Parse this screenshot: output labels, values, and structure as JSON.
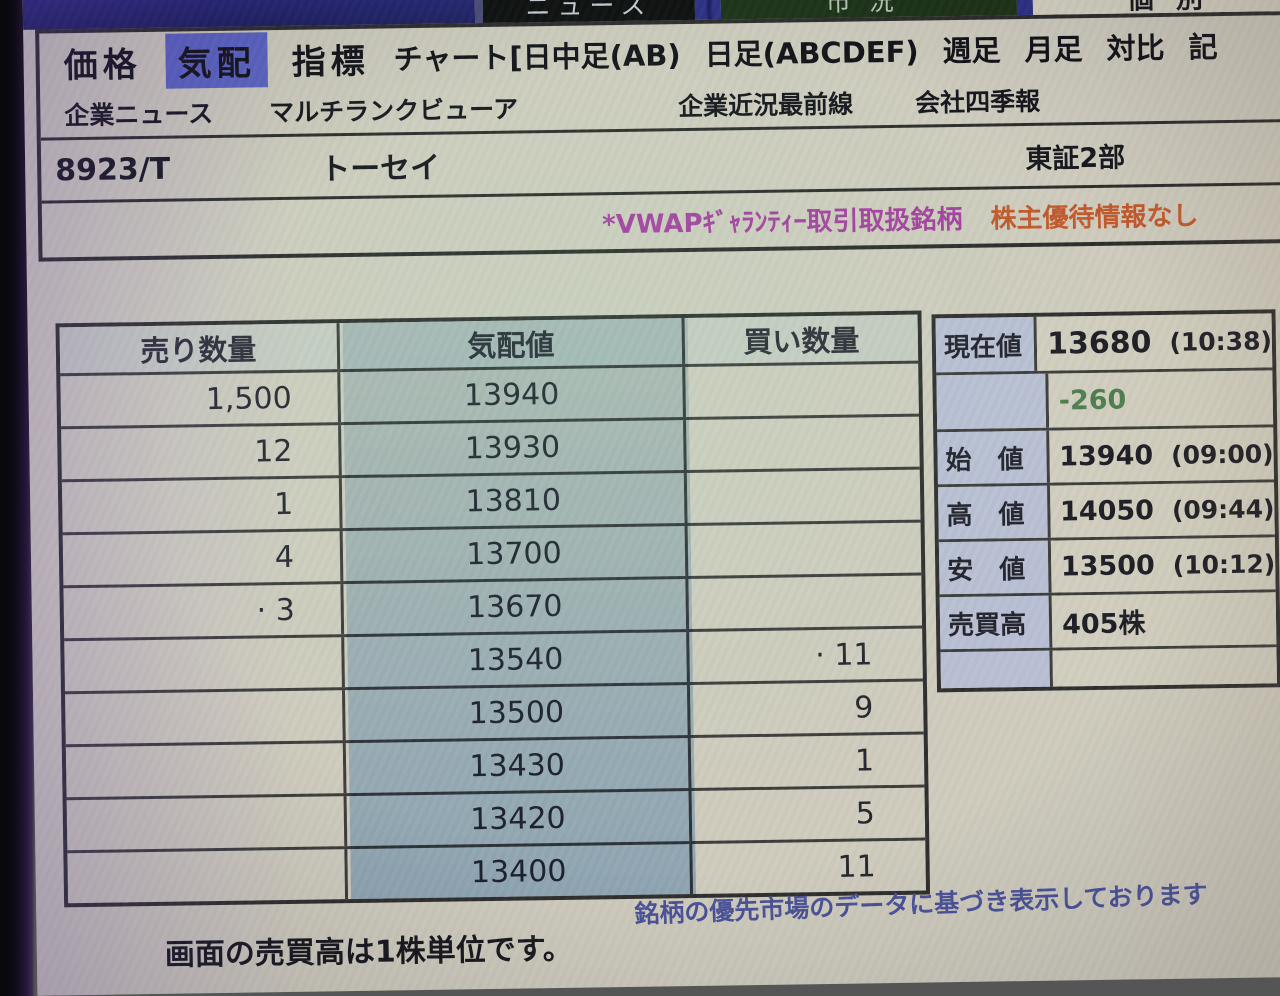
{
  "top_tabs": {
    "news": "ニュース",
    "market": "市況",
    "individual": "個別"
  },
  "menus": {
    "row1": [
      "価格",
      "気配",
      "指標",
      "チャート[日中足(AB)",
      "日足(ABCDEF)",
      "週足",
      "月足",
      "対比",
      "記"
    ],
    "row2": [
      "企業ニュース",
      "マルチランクビューア",
      "企業近況最前線",
      "会社四季報"
    ]
  },
  "stock": {
    "code": "8923/T",
    "name": "トーセイ",
    "exchange": "東証2部"
  },
  "notice": {
    "vwap": "*VWAPｷﾞｬﾗﾝﾃｨｰ取引取扱銘柄",
    "yutai": "株主優待情報なし"
  },
  "orderbook": {
    "headers": {
      "sell": "売り数量",
      "price": "気配値",
      "buy": "買い数量"
    },
    "rows": [
      {
        "sell": "1,500",
        "price": "13940",
        "buy": ""
      },
      {
        "sell": "12",
        "price": "13930",
        "buy": ""
      },
      {
        "sell": "1",
        "price": "13810",
        "buy": ""
      },
      {
        "sell": "4",
        "price": "13700",
        "buy": ""
      },
      {
        "sell": "· 3",
        "price": "13670",
        "buy": ""
      },
      {
        "sell": "",
        "price": "13540",
        "buy": "· 11"
      },
      {
        "sell": "",
        "price": "13500",
        "buy": "9"
      },
      {
        "sell": "",
        "price": "13430",
        "buy": "1"
      },
      {
        "sell": "",
        "price": "13420",
        "buy": "5"
      },
      {
        "sell": "",
        "price": "13400",
        "buy": "11"
      }
    ]
  },
  "quote_panel": {
    "rows": [
      {
        "label": "現在値",
        "value": "13680",
        "time": "(10:38)"
      },
      {
        "label": "",
        "value": "-260",
        "time": ""
      },
      {
        "label": "始　値",
        "value": "13940",
        "time": "(09:00)"
      },
      {
        "label": "高　値",
        "value": "14050",
        "time": "(09:44)"
      },
      {
        "label": "安　値",
        "value": "13500",
        "time": "(10:12)"
      },
      {
        "label": "売買高",
        "value": "405株",
        "time": ""
      },
      {
        "label": "",
        "value": "",
        "time": ""
      }
    ]
  },
  "footer": {
    "left": "画面の売買高は1株単位です。",
    "right": "銘柄の優先市場のデータに基づき表示しております"
  },
  "colors": {
    "menu_highlight": "#5a63c2",
    "price_column_blue": "#bcd3e6",
    "panel_label_blue": "#b9bfd3",
    "change_green": "#4e7d4e",
    "vwap_magenta": "#a43f9e",
    "yutai_orange": "#c2582a",
    "footer_blue": "#4a5298",
    "screen_beige": "#cfccbd"
  }
}
